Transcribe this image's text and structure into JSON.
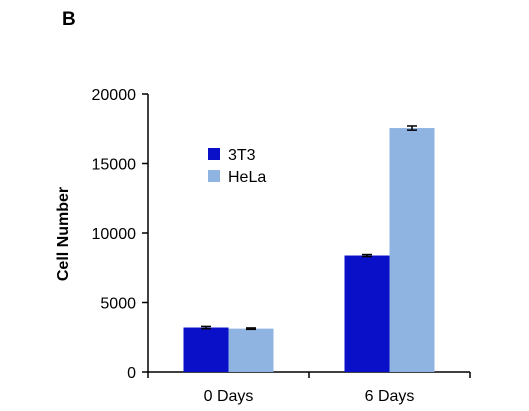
{
  "panel_label": "B",
  "chart_data": {
    "type": "bar",
    "title": "",
    "xlabel": "",
    "ylabel": "Cell Number",
    "ylim": [
      0,
      20000
    ],
    "yticks": [
      0,
      5000,
      10000,
      15000,
      20000
    ],
    "categories": [
      "0 Days",
      "6 Days"
    ],
    "grid": false,
    "legend_position": "top-left inside plot",
    "series": [
      {
        "name": "3T3",
        "color": "#0a0fc8",
        "values": [
          3200,
          8380
        ],
        "errors": [
          80,
          70
        ]
      },
      {
        "name": "HeLa",
        "color": "#8fb4e2",
        "values": [
          3120,
          17550
        ],
        "errors": [
          50,
          150
        ]
      }
    ]
  }
}
